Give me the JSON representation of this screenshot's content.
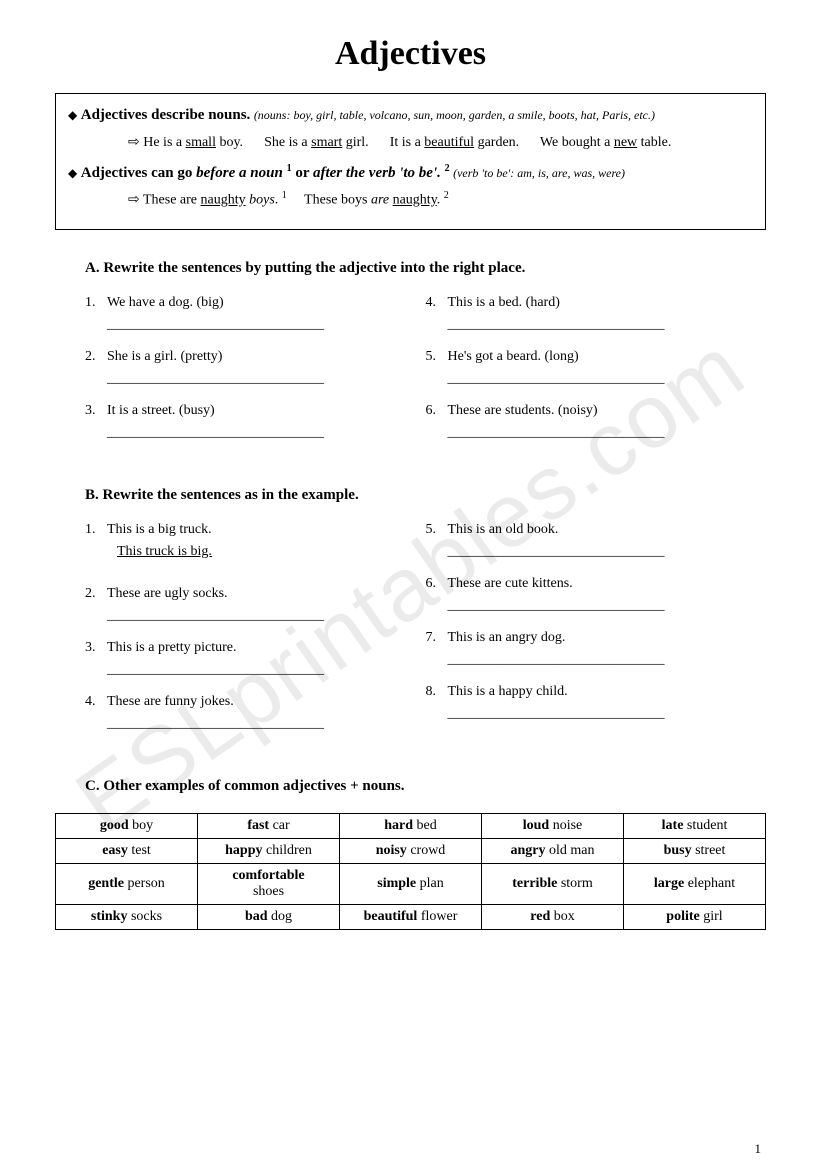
{
  "title": "Adjectives",
  "rule1": {
    "head": "Adjectives describe nouns.",
    "paren": "(nouns: boy, girl, table, volcano, sun, moon, garden, a smile, boots, hat, Paris, etc.)",
    "ex_prefix": "⇨",
    "ex1": "He is a ",
    "ex1_u": "small",
    "ex1_b": " boy.",
    "ex2": "She is a ",
    "ex2_u": "smart",
    "ex2_b": " girl.",
    "ex3": "It is a ",
    "ex3_u": "beautiful",
    "ex3_b": " garden.",
    "ex4": "We bought a ",
    "ex4_u": "new",
    "ex4_b": " table."
  },
  "rule2": {
    "head_a": "Adjectives can go ",
    "head_b": "before a noun",
    "head_sup1": "1",
    "head_c": " or ",
    "head_d": "after the verb 'to be'.",
    "head_sup2": "2",
    "paren": "(verb 'to be': am, is, are, was, were)",
    "ex1": "These are ",
    "ex1_u": "naughty",
    "ex1_b": " boys",
    "ex1_c": ".",
    "sup1": "1",
    "ex2": "These boys ",
    "ex2_i": "are",
    "ex2_u": "naughty",
    "ex2_c": ".",
    "sup2": "2"
  },
  "sectionA": {
    "head": "A.  Rewrite the sentences by putting the adjective into the right place.",
    "left": [
      {
        "n": "1.",
        "t": "We have a dog. (big)"
      },
      {
        "n": "2.",
        "t": "She is a girl. (pretty)"
      },
      {
        "n": "3.",
        "t": "It is a street. (busy)"
      }
    ],
    "right": [
      {
        "n": "4.",
        "t": "This is a bed. (hard)"
      },
      {
        "n": "5.",
        "t": "He's got a beard. (long)"
      },
      {
        "n": "6.",
        "t": "These are students. (noisy)"
      }
    ]
  },
  "sectionB": {
    "head": "B.  Rewrite the sentences as in the example.",
    "left": [
      {
        "n": "1.",
        "t": "This is a big truck.",
        "ans": "This truck is big."
      },
      {
        "n": "2.",
        "t": "These are ugly socks."
      },
      {
        "n": "3.",
        "t": "This is a pretty picture."
      },
      {
        "n": "4.",
        "t": "These are funny jokes."
      }
    ],
    "right": [
      {
        "n": "5.",
        "t": "This is an old book."
      },
      {
        "n": "6.",
        "t": "These are cute kittens."
      },
      {
        "n": "7.",
        "t": "This is an angry dog."
      },
      {
        "n": "8.",
        "t": "This is a happy child."
      }
    ]
  },
  "sectionC": {
    "head": "C.  Other examples of common adjectives + nouns.",
    "rows": [
      [
        {
          "a": "good",
          "n": "boy"
        },
        {
          "a": "fast",
          "n": "car"
        },
        {
          "a": "hard",
          "n": "bed"
        },
        {
          "a": "loud",
          "n": "noise"
        },
        {
          "a": "late",
          "n": "student"
        }
      ],
      [
        {
          "a": "easy",
          "n": "test"
        },
        {
          "a": "happy",
          "n": "children"
        },
        {
          "a": "noisy",
          "n": "crowd"
        },
        {
          "a": "angry",
          "n": "old man"
        },
        {
          "a": "busy",
          "n": "street"
        }
      ],
      [
        {
          "a": "gentle",
          "n": "person"
        },
        {
          "a": "comfortable",
          "n": "shoes"
        },
        {
          "a": "simple",
          "n": "plan"
        },
        {
          "a": "terrible",
          "n": "storm"
        },
        {
          "a": "large",
          "n": "elephant"
        }
      ],
      [
        {
          "a": "stinky",
          "n": "socks"
        },
        {
          "a": "bad",
          "n": "dog"
        },
        {
          "a": "beautiful",
          "n": "flower"
        },
        {
          "a": "red",
          "n": "box"
        },
        {
          "a": "polite",
          "n": "girl"
        }
      ]
    ]
  },
  "blank_line": "_______________________________",
  "watermark": "ESLprintables.com",
  "page_num": "1"
}
